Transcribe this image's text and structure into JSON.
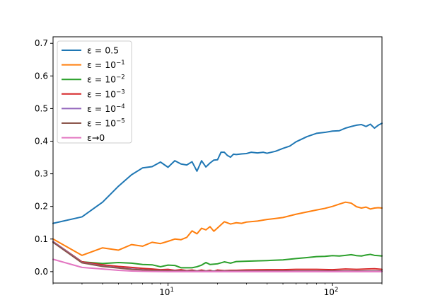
{
  "chart_data": {
    "type": "line",
    "x_scale": "log",
    "xlim": [
      2,
      200
    ],
    "ylim": [
      -0.035,
      0.72
    ],
    "grid": false,
    "legend_position": "top-left",
    "x_ticks": [
      {
        "value": 10,
        "base": "10",
        "exp": "1"
      },
      {
        "value": 100,
        "base": "10",
        "exp": "2"
      }
    ],
    "y_ticks": [
      {
        "value": 0.0,
        "label": "0.0"
      },
      {
        "value": 0.1,
        "label": "0.1"
      },
      {
        "value": 0.2,
        "label": "0.2"
      },
      {
        "value": 0.3,
        "label": "0.3"
      },
      {
        "value": 0.4,
        "label": "0.4"
      },
      {
        "value": 0.5,
        "label": "0.5"
      },
      {
        "value": 0.6,
        "label": "0.6"
      },
      {
        "value": 0.7,
        "label": "0.7"
      }
    ],
    "series": [
      {
        "name": "ε = 0.5",
        "legend": {
          "prefix": "ε = ",
          "base": "0.5",
          "exp": ""
        },
        "color": "#1f77b4",
        "x": [
          2,
          3,
          4,
          5,
          6,
          7,
          8,
          9,
          10,
          11,
          12,
          13,
          14,
          15,
          16,
          17,
          18,
          19,
          20,
          21,
          22,
          23,
          24,
          25,
          26,
          28,
          30,
          32,
          35,
          38,
          40,
          45,
          50,
          55,
          60,
          70,
          80,
          90,
          100,
          110,
          120,
          130,
          140,
          150,
          160,
          170,
          180,
          190,
          200
        ],
        "y": [
          0.148,
          0.168,
          0.213,
          0.262,
          0.297,
          0.318,
          0.322,
          0.336,
          0.32,
          0.34,
          0.33,
          0.327,
          0.337,
          0.308,
          0.34,
          0.321,
          0.333,
          0.342,
          0.343,
          0.366,
          0.366,
          0.356,
          0.351,
          0.36,
          0.359,
          0.361,
          0.362,
          0.366,
          0.364,
          0.366,
          0.363,
          0.369,
          0.378,
          0.385,
          0.398,
          0.414,
          0.424,
          0.427,
          0.431,
          0.432,
          0.44,
          0.445,
          0.449,
          0.451,
          0.445,
          0.452,
          0.44,
          0.449,
          0.455
        ]
      },
      {
        "name": "ε = 10−1",
        "legend": {
          "prefix": "ε = ",
          "base": "10",
          "exp": "−1"
        },
        "color": "#ff7f0e",
        "x": [
          2,
          3,
          4,
          5,
          6,
          7,
          8,
          9,
          10,
          11,
          12,
          13,
          14,
          15,
          16,
          17,
          18,
          19,
          20,
          22,
          24,
          26,
          28,
          30,
          35,
          40,
          45,
          50,
          60,
          70,
          80,
          90,
          100,
          110,
          120,
          130,
          140,
          150,
          160,
          170,
          180,
          190,
          200
        ],
        "y": [
          0.1,
          0.05,
          0.073,
          0.066,
          0.083,
          0.078,
          0.09,
          0.086,
          0.093,
          0.1,
          0.098,
          0.105,
          0.125,
          0.116,
          0.133,
          0.128,
          0.138,
          0.124,
          0.134,
          0.153,
          0.146,
          0.15,
          0.148,
          0.152,
          0.155,
          0.16,
          0.163,
          0.166,
          0.176,
          0.183,
          0.189,
          0.194,
          0.2,
          0.207,
          0.213,
          0.21,
          0.199,
          0.195,
          0.198,
          0.192,
          0.195,
          0.196,
          0.195
        ]
      },
      {
        "name": "ε = 10−2",
        "legend": {
          "prefix": "ε = ",
          "base": "10",
          "exp": "−2"
        },
        "color": "#2ca02c",
        "x": [
          2,
          3,
          4,
          5,
          6,
          7,
          8,
          9,
          10,
          11,
          12,
          13,
          14,
          15,
          16,
          17,
          18,
          20,
          22,
          24,
          26,
          30,
          35,
          40,
          50,
          60,
          70,
          80,
          90,
          100,
          110,
          120,
          130,
          140,
          150,
          160,
          170,
          180,
          190,
          200
        ],
        "y": [
          0.092,
          0.03,
          0.025,
          0.028,
          0.026,
          0.022,
          0.021,
          0.015,
          0.02,
          0.019,
          0.012,
          0.012,
          0.012,
          0.015,
          0.02,
          0.028,
          0.022,
          0.024,
          0.03,
          0.026,
          0.031,
          0.032,
          0.033,
          0.034,
          0.036,
          0.04,
          0.043,
          0.046,
          0.047,
          0.049,
          0.048,
          0.05,
          0.052,
          0.049,
          0.048,
          0.051,
          0.053,
          0.05,
          0.049,
          0.048
        ]
      },
      {
        "name": "ε = 10−3",
        "legend": {
          "prefix": "ε = ",
          "base": "10",
          "exp": "−3"
        },
        "color": "#d62728",
        "x": [
          2,
          3,
          4,
          5,
          6,
          7,
          8,
          9,
          10,
          11,
          12,
          13,
          14,
          15,
          16,
          17,
          18,
          19,
          20,
          22,
          24,
          26,
          30,
          40,
          50,
          60,
          80,
          100,
          120,
          140,
          160,
          180,
          200
        ],
        "y": [
          0.092,
          0.03,
          0.021,
          0.016,
          0.013,
          0.01,
          0.008,
          0.006,
          0.007,
          0.004,
          0.006,
          0.003,
          0.005,
          0.002,
          0.005,
          0.002,
          0.004,
          0.001,
          0.005,
          0.003,
          0.004,
          0.004,
          0.005,
          0.006,
          0.006,
          0.007,
          0.007,
          0.006,
          0.008,
          0.007,
          0.008,
          0.009,
          0.007
        ]
      },
      {
        "name": "ε = 10−4",
        "legend": {
          "prefix": "ε = ",
          "base": "10",
          "exp": "−4"
        },
        "color": "#9467bd",
        "x": [
          2,
          3,
          4,
          5,
          6,
          7,
          8,
          10,
          12,
          15,
          20,
          30,
          50,
          100,
          200
        ],
        "y": [
          0.092,
          0.028,
          0.017,
          0.012,
          0.008,
          0.006,
          0.004,
          0.003,
          0.002,
          0.002,
          0.002,
          0.002,
          0.002,
          0.002,
          0.002
        ]
      },
      {
        "name": "ε = 10−5",
        "legend": {
          "prefix": "ε = ",
          "base": "10",
          "exp": "−5"
        },
        "color": "#8c564b",
        "x": [
          2,
          3,
          4,
          5,
          6,
          7,
          8,
          10,
          12,
          15,
          20,
          30,
          50,
          100,
          200
        ],
        "y": [
          0.09,
          0.027,
          0.016,
          0.011,
          0.007,
          0.005,
          0.004,
          0.002,
          0.001,
          0.001,
          0.001,
          0.001,
          0.001,
          0.001,
          0.001
        ]
      },
      {
        "name": "ε→0",
        "legend": {
          "prefix": "ε→0",
          "base": "",
          "exp": ""
        },
        "color": "#e377c2",
        "x": [
          2,
          3,
          4,
          5,
          6,
          7,
          8,
          10,
          12,
          15,
          20,
          30,
          50,
          100,
          200
        ],
        "y": [
          0.038,
          0.013,
          0.008,
          0.004,
          0.002,
          0.001,
          0.0005,
          0.0,
          0.0,
          0.0,
          0.0,
          0.0,
          0.0,
          0.0,
          0.0
        ]
      }
    ]
  }
}
